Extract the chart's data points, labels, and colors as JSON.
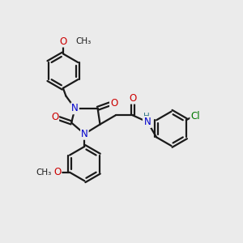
{
  "bg_color": "#ebebeb",
  "bond_color": "#1a1a1a",
  "N_color": "#0000cc",
  "O_color": "#cc0000",
  "Cl_color": "#007700",
  "H_color": "#337788",
  "line_width": 1.6,
  "font_size": 8.5,
  "fig_size": [
    3.0,
    3.0
  ],
  "dpi": 100,
  "xlim": [
    0,
    10
  ],
  "ylim": [
    0,
    10
  ]
}
